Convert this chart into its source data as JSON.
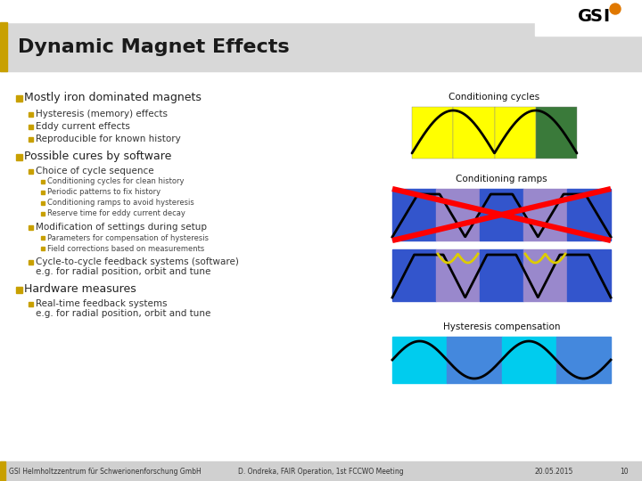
{
  "title": "Dynamic Magnet Effects",
  "header_bar_color": "#d8d8d8",
  "left_accent_color": "#c8a000",
  "footer_bg": "#d0d0d0",
  "footer_left": "GSI Helmholtzzentrum für Schwerionenforschung GmbH",
  "footer_center": "D. Ondreka, FAIR Operation, 1st FCCWO Meeting",
  "footer_right": "20.05.2015",
  "footer_page": "10",
  "bullet_color": "#c8a000",
  "title_color": "#1a1a1a",
  "text_color": "#333333",
  "main_bullets": [
    "Mostly iron dominated magnets",
    "Possible cures by software",
    "Hardware measures"
  ],
  "sub_bullets_1": [
    "Hysteresis (memory) effects",
    "Eddy current effects",
    "Reproducible for known history"
  ],
  "sub_bullets_2a": "Choice of cycle sequence",
  "sub_bullets_2a_sub": [
    "Conditioning cycles for clean history",
    "Periodic patterns to fix history",
    "Conditioning ramps to avoid hysteresis",
    "Reserve time for eddy current decay"
  ],
  "sub_bullets_2b": "Modification of settings during setup",
  "sub_bullets_2b_sub": [
    "Parameters for compensation of hysteresis",
    "Field corrections based on measurements"
  ],
  "sub_bullets_2c_line1": "Cycle-to-cycle feedback systems (software)",
  "sub_bullets_2c_line2": "e.g. for radial position, orbit and tune",
  "sub_bullets_3_line1": "Real-time feedback systems",
  "sub_bullets_3_line2": "e.g. for radial position, orbit and tune",
  "conditioning_cycles_label": "Conditioning cycles",
  "conditioning_ramps_label": "Conditioning ramps",
  "hysteresis_label": "Hysteresis compensation",
  "yellow_color": "#ffff00",
  "green_color": "#3a7a3a",
  "blue_dark": "#3355cc",
  "blue_mid": "#4466dd",
  "purple_color": "#9988cc",
  "cyan_color": "#00ccee",
  "blue_hysteresis": "#4488dd"
}
